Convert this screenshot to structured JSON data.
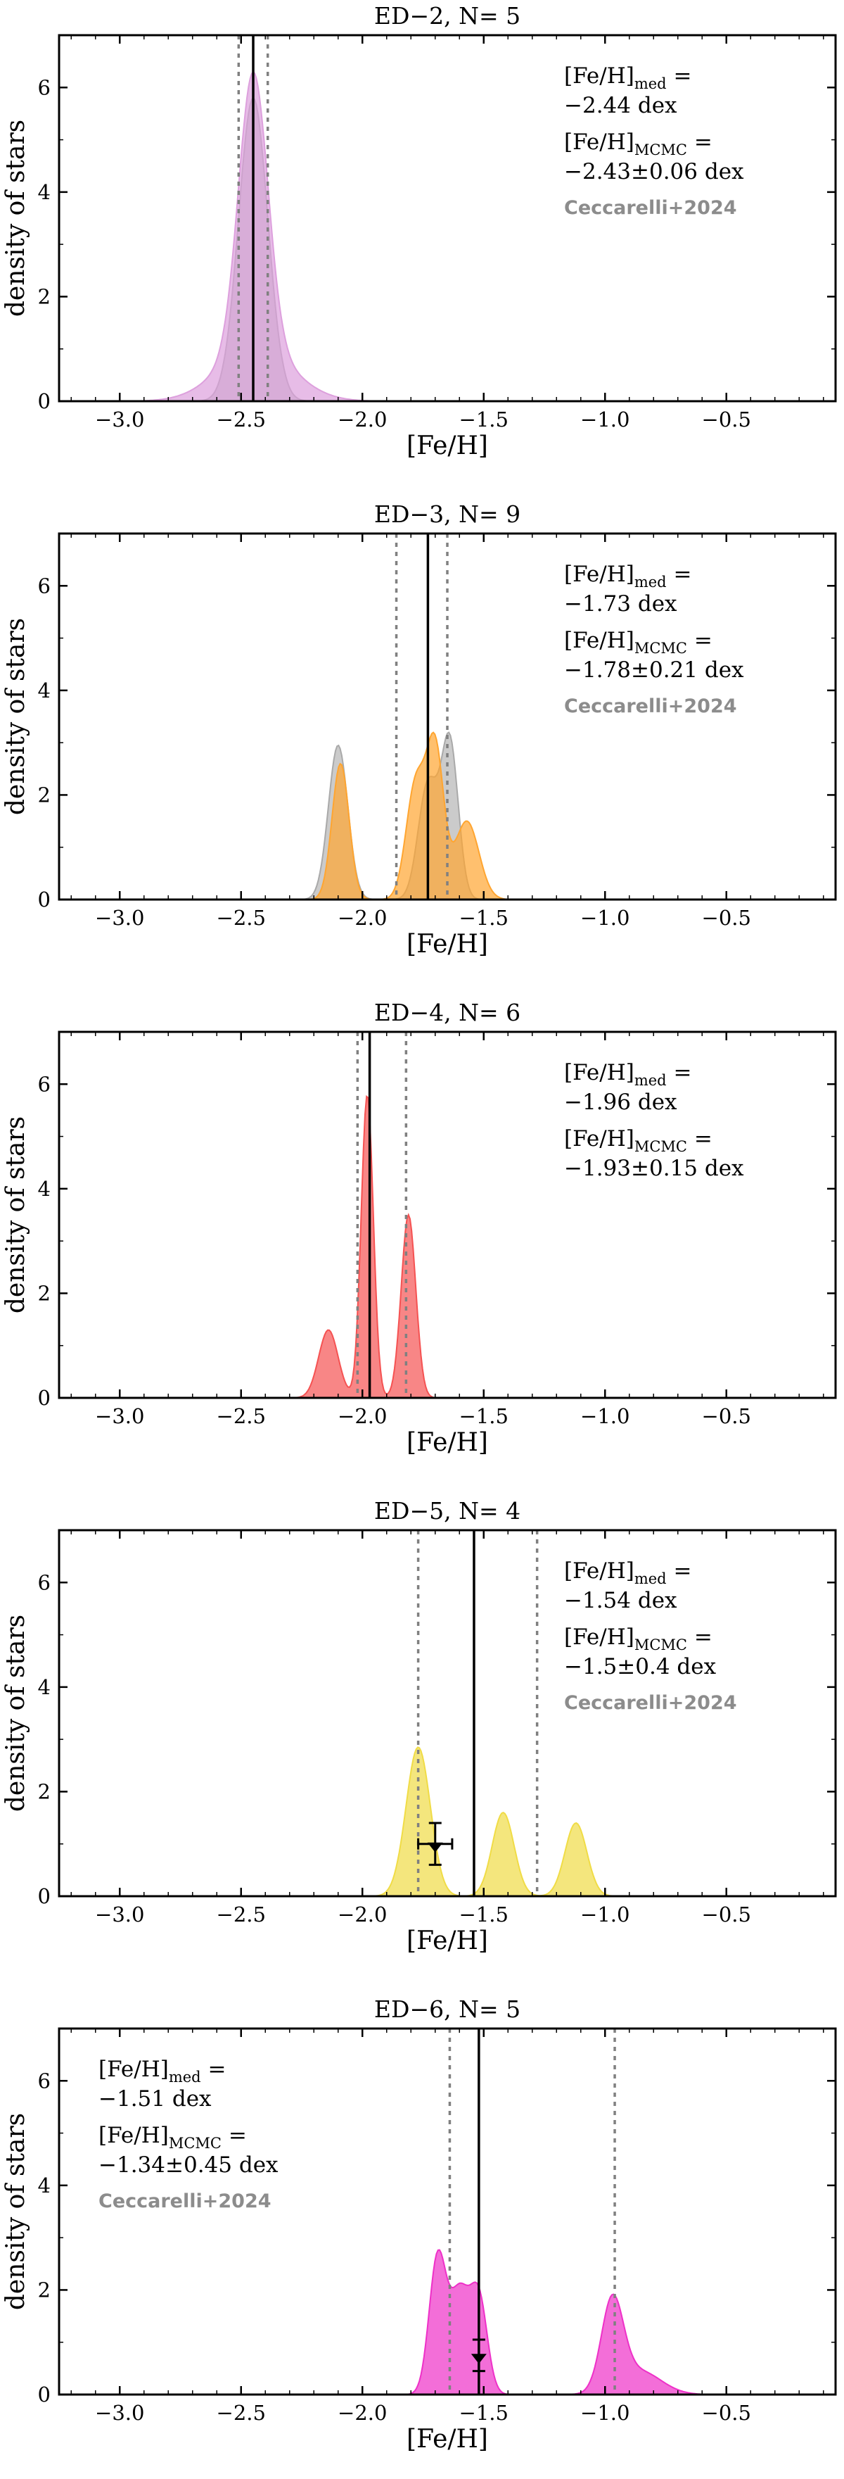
{
  "colors": {
    "ref": "#a9a9a9",
    "ED-2": "#dda0dd",
    "ED-3": "#ffa530",
    "ED-4": "#f55252",
    "ED-5": "#f0dc46",
    "ED-6": "#ee30c8"
  },
  "chart_data": [
    {
      "type": "area",
      "id": "ED-2",
      "title": "ED−2, N= 5",
      "xlabel": "[Fe/H]",
      "ylabel": "density of stars",
      "xlim": [
        -3.25,
        -0.05
      ],
      "ylim": [
        0,
        7
      ],
      "xticks": [
        -3.0,
        -2.5,
        -2.0,
        -1.5,
        -1.0,
        -0.5
      ],
      "xtick_labels": [
        "−3.0",
        "−2.5",
        "−2.0",
        "−1.5",
        "−1.0",
        "−0.5"
      ],
      "yticks": [
        0,
        2,
        4,
        6
      ],
      "ytick_labels": [
        "0",
        "2",
        "4",
        "6"
      ],
      "legend_position": "top-right",
      "median": -2.45,
      "bounds": [
        -2.51,
        -2.39
      ],
      "text_lines": [
        {
          "main": "[Fe/H]",
          "sub": "med",
          "tail": " ="
        },
        {
          "main": "−2.44 dex"
        },
        {
          "main": "[Fe/H]",
          "sub": "MCMC",
          "tail": " ="
        },
        {
          "main": "−2.43±0.06 dex"
        },
        {
          "main": "Ceccarelli+2024",
          "gray": true
        }
      ],
      "series": [
        {
          "name": "Ceccarelli+2024",
          "kind": "reference",
          "color": "#a9a9a9",
          "peaks": [
            [
              -2.45,
              0.06,
              5.8
            ]
          ]
        },
        {
          "name": "ED-2",
          "kind": "sample",
          "color": "#dda0dd",
          "peaks": [
            [
              -2.45,
              0.06,
              5.3
            ],
            [
              -2.44,
              0.15,
              1.0
            ]
          ]
        }
      ]
    },
    {
      "type": "area",
      "id": "ED-3",
      "title": "ED−3, N= 9",
      "xlabel": "[Fe/H]",
      "ylabel": "density of stars",
      "xlim": [
        -3.25,
        -0.05
      ],
      "ylim": [
        0,
        7
      ],
      "xticks": [
        -3.0,
        -2.5,
        -2.0,
        -1.5,
        -1.0,
        -0.5
      ],
      "xtick_labels": [
        "−3.0",
        "−2.5",
        "−2.0",
        "−1.5",
        "−1.0",
        "−0.5"
      ],
      "yticks": [
        0,
        2,
        4,
        6
      ],
      "ytick_labels": [
        "0",
        "2",
        "4",
        "6"
      ],
      "legend_position": "top-right",
      "median": -1.73,
      "bounds": [
        -1.86,
        -1.65
      ],
      "text_lines": [
        {
          "main": "[Fe/H]",
          "sub": "med",
          "tail": " ="
        },
        {
          "main": "−1.73 dex"
        },
        {
          "main": "[Fe/H]",
          "sub": "MCMC",
          "tail": " ="
        },
        {
          "main": "−1.78±0.21 dex"
        },
        {
          "main": "Ceccarelli+2024",
          "gray": true
        }
      ],
      "series": [
        {
          "name": "Ceccarelli+2024",
          "kind": "reference",
          "color": "#a9a9a9",
          "peaks": [
            [
              -2.1,
              0.04,
              2.95
            ],
            [
              -1.73,
              0.04,
              2.2
            ],
            [
              -1.64,
              0.035,
              3.0
            ]
          ]
        },
        {
          "name": "ED-3",
          "kind": "sample",
          "color": "#ffa530",
          "peaks": [
            [
              -2.09,
              0.035,
              2.6
            ],
            [
              -1.78,
              0.04,
              2.2
            ],
            [
              -1.7,
              0.035,
              2.8
            ],
            [
              -1.57,
              0.05,
              1.5
            ]
          ]
        }
      ]
    },
    {
      "type": "area",
      "id": "ED-4",
      "title": "ED−4, N= 6",
      "xlabel": "[Fe/H]",
      "ylabel": "density of stars",
      "xlim": [
        -3.25,
        -0.05
      ],
      "ylim": [
        0,
        7
      ],
      "xticks": [
        -3.0,
        -2.5,
        -2.0,
        -1.5,
        -1.0,
        -0.5
      ],
      "xtick_labels": [
        "−3.0",
        "−2.5",
        "−2.0",
        "−1.5",
        "−1.0",
        "−0.5"
      ],
      "yticks": [
        0,
        2,
        4,
        6
      ],
      "ytick_labels": [
        "0",
        "2",
        "4",
        "6"
      ],
      "legend_position": "top-right",
      "median": -1.97,
      "bounds": [
        -2.02,
        -1.82
      ],
      "text_lines": [
        {
          "main": "[Fe/H]",
          "sub": "med",
          "tail": " ="
        },
        {
          "main": "−1.96 dex"
        },
        {
          "main": "[Fe/H]",
          "sub": "MCMC",
          "tail": " ="
        },
        {
          "main": "−1.93±0.15 dex"
        }
      ],
      "series": [
        {
          "name": "ED-4",
          "kind": "sample",
          "color": "#f55252",
          "peaks": [
            [
              -2.14,
              0.04,
              1.3
            ],
            [
              -1.98,
              0.025,
              5.8
            ],
            [
              -1.81,
              0.03,
              3.5
            ]
          ]
        }
      ]
    },
    {
      "type": "area",
      "id": "ED-5",
      "title": "ED−5, N= 4",
      "xlabel": "[Fe/H]",
      "ylabel": "density of stars",
      "xlim": [
        -3.25,
        -0.05
      ],
      "ylim": [
        0,
        7
      ],
      "xticks": [
        -3.0,
        -2.5,
        -2.0,
        -1.5,
        -1.0,
        -0.5
      ],
      "xtick_labels": [
        "−3.0",
        "−2.5",
        "−2.0",
        "−1.5",
        "−1.0",
        "−0.5"
      ],
      "yticks": [
        0,
        2,
        4,
        6
      ],
      "ytick_labels": [
        "0",
        "2",
        "4",
        "6"
      ],
      "legend_position": "top-right",
      "median": -1.54,
      "bounds": [
        -1.77,
        -1.28
      ],
      "errorbar": {
        "x": -1.7,
        "xerr": 0.07,
        "y": 1.0,
        "yerr": 0.4
      },
      "text_lines": [
        {
          "main": "[Fe/H]",
          "sub": "med",
          "tail": " ="
        },
        {
          "main": "−1.54 dex"
        },
        {
          "main": "[Fe/H]",
          "sub": "MCMC",
          "tail": " ="
        },
        {
          "main": "−1.5±0.4 dex"
        },
        {
          "main": "Ceccarelli+2024",
          "gray": true
        }
      ],
      "series": [
        {
          "name": "ED-5",
          "kind": "sample",
          "color": "#f0dc46",
          "peaks": [
            [
              -1.77,
              0.05,
              2.85
            ],
            [
              -1.42,
              0.045,
              1.6
            ],
            [
              -1.12,
              0.045,
              1.4
            ]
          ]
        }
      ]
    },
    {
      "type": "area",
      "id": "ED-6",
      "title": "ED−6, N= 5",
      "xlabel": "[Fe/H]",
      "ylabel": "density of stars",
      "xlim": [
        -3.25,
        -0.05
      ],
      "ylim": [
        0,
        7
      ],
      "xticks": [
        -3.0,
        -2.5,
        -2.0,
        -1.5,
        -1.0,
        -0.5
      ],
      "xtick_labels": [
        "−3.0",
        "−2.5",
        "−2.0",
        "−1.5",
        "−1.0",
        "−0.5"
      ],
      "yticks": [
        0,
        2,
        4,
        6
      ],
      "ytick_labels": [
        "0",
        "2",
        "4",
        "6"
      ],
      "legend_position": "top-left",
      "median": -1.52,
      "bounds": [
        -1.64,
        -0.96
      ],
      "errorbar": {
        "x": -1.52,
        "xerr": 0.0,
        "y": 0.75,
        "yerr": 0.3
      },
      "text_lines": [
        {
          "main": "[Fe/H]",
          "sub": "med",
          "tail": " ="
        },
        {
          "main": "−1.51 dex"
        },
        {
          "main": "[Fe/H]",
          "sub": "MCMC",
          "tail": " ="
        },
        {
          "main": "−1.34±0.45 dex"
        },
        {
          "main": "Ceccarelli+2024",
          "gray": true
        }
      ],
      "series": [
        {
          "name": "ED-6",
          "kind": "sample",
          "color": "#ee30c8",
          "peaks": [
            [
              -1.69,
              0.035,
              2.6
            ],
            [
              -1.6,
              0.04,
              1.9
            ],
            [
              -1.52,
              0.035,
              1.8
            ],
            [
              -0.97,
              0.045,
              1.7
            ],
            [
              -0.86,
              0.09,
              0.45
            ]
          ]
        }
      ]
    }
  ]
}
